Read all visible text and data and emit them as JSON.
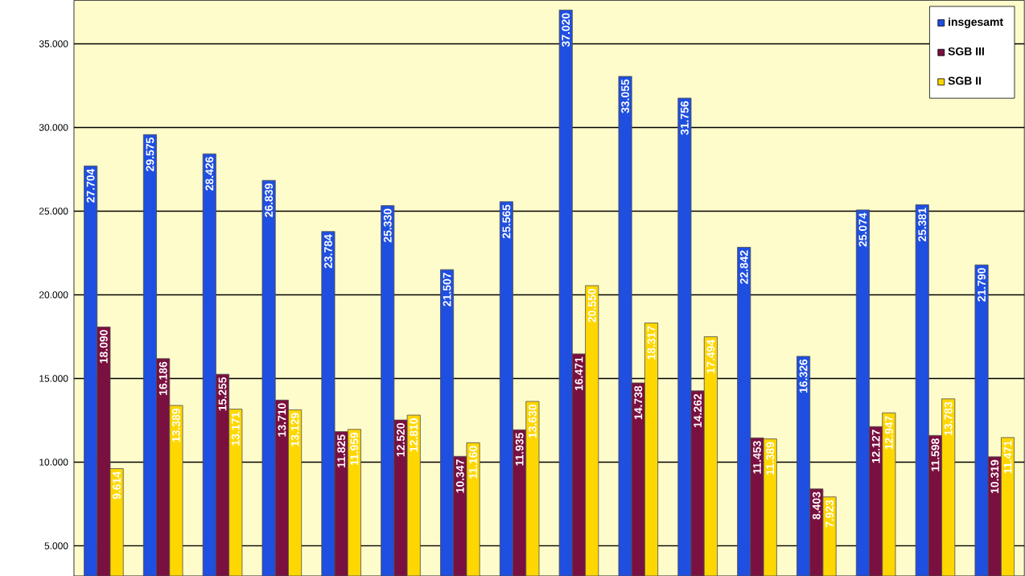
{
  "chart_data": {
    "type": "bar",
    "categories": [
      null,
      null,
      null,
      null,
      null,
      null,
      null,
      null,
      null,
      null,
      null,
      null,
      null,
      null,
      null,
      null
    ],
    "series": [
      {
        "name": "insgesamt",
        "color": "#1f4fe0",
        "values": [
          27704,
          29575,
          28426,
          26839,
          23784,
          25330,
          21507,
          25565,
          37020,
          33055,
          31756,
          22842,
          16326,
          25074,
          25381,
          21790
        ],
        "value_labels": [
          "27.704",
          "29.575",
          "28.426",
          "26.839",
          "23.784",
          "25.330",
          "21.507",
          "25.565",
          "37.020",
          "33.055",
          "31.756",
          "22.842",
          "16.326",
          "25.074",
          "25.381",
          "21.790"
        ]
      },
      {
        "name": "SGB III",
        "color": "#7a1040",
        "values": [
          18090,
          16186,
          15255,
          13710,
          11825,
          12520,
          10347,
          11935,
          16471,
          14738,
          14262,
          11453,
          8403,
          12127,
          11598,
          10319
        ],
        "value_labels": [
          "18.090",
          "16.186",
          "15.255",
          "13.710",
          "11.825",
          "12.520",
          "10.347",
          "11.935",
          "16.471",
          "14.738",
          "14.262",
          "11.453",
          "8.403",
          "12.127",
          "11.598",
          "10.319"
        ]
      },
      {
        "name": "SGB II",
        "color": "#ffd700",
        "values": [
          9614,
          13389,
          13171,
          13129,
          11959,
          12810,
          11160,
          13630,
          20550,
          18317,
          17494,
          11389,
          7923,
          12947,
          13783,
          11471
        ],
        "value_labels": [
          "9.614",
          "13.389",
          "13.171",
          "13.129",
          "11.959",
          "12.810",
          "11.160",
          "13.630",
          "20.550",
          "18.317",
          "17.494",
          "11.389",
          "7.923",
          "12.947",
          "13.783",
          "11.471"
        ]
      }
    ],
    "ylim": [
      3200,
      37600
    ],
    "yticks": [
      {
        "value": 5000,
        "label": "5.000"
      },
      {
        "value": 10000,
        "label": "10.000"
      },
      {
        "value": 15000,
        "label": "15.000"
      },
      {
        "value": 20000,
        "label": "20.000"
      },
      {
        "value": 25000,
        "label": "25.000"
      },
      {
        "value": 30000,
        "label": "30.000"
      },
      {
        "value": 35000,
        "label": "35.000"
      }
    ],
    "grid": "y",
    "legend": "top right",
    "tick_labels": "y"
  }
}
